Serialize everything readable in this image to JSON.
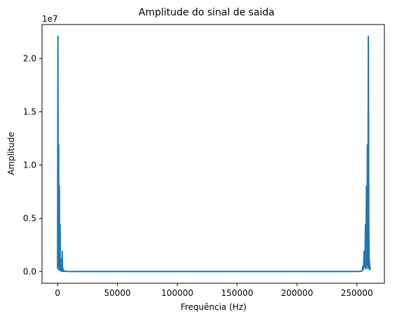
{
  "chart_data": {
    "type": "line",
    "title": "Amplitude do sinal de saida",
    "xlabel": "Frequência (Hz)",
    "ylabel": "Amplitude",
    "y_offset_label": "1e7",
    "xlim": [
      -13000,
      273000
    ],
    "ylim": [
      -1100000,
      23200000
    ],
    "x_ticks": [
      0,
      50000,
      100000,
      150000,
      200000,
      250000
    ],
    "x_tick_labels": [
      "0",
      "50000",
      "100000",
      "150000",
      "200000",
      "250000"
    ],
    "y_ticks": [
      0,
      5000000,
      10000000,
      15000000,
      20000000
    ],
    "y_tick_labels": [
      "0.0",
      "0.5",
      "1.0",
      "1.5",
      "2.0"
    ],
    "grid": false,
    "line_color": "#1f77b4",
    "series": [
      {
        "values_x": [
          0,
          300,
          500,
          700,
          900,
          1100,
          1300,
          1500,
          1700,
          1900,
          2100,
          2300,
          2500,
          2700,
          2900,
          3100,
          3300,
          3500,
          3700,
          3900,
          4100,
          4300,
          4500,
          4700,
          4900,
          5100,
          5300,
          5500,
          6500,
          8000,
          10000,
          50000,
          100000,
          130000,
          160000,
          210000,
          250000,
          252000,
          254500,
          255000,
          255600,
          256000,
          256400,
          256800,
          257200,
          257600,
          258000,
          258400,
          258800,
          259200,
          259600,
          260000,
          260300,
          260500,
          260700,
          260900,
          261000
        ],
        "values_y": [
          300000,
          22100000,
          800000,
          200000,
          11900000,
          600000,
          200000,
          8000000,
          400000,
          100000,
          4400000,
          250000,
          80000,
          1200000,
          100000,
          40000,
          700000,
          80000,
          30000,
          1900000,
          60000,
          20000,
          300000,
          50000,
          20000,
          120000,
          30000,
          10000,
          40000,
          10000,
          5000,
          0,
          0,
          0,
          0,
          0,
          5000,
          10000,
          50000,
          500000,
          200000,
          1900000,
          400000,
          1200000,
          4400000,
          250000,
          8000000,
          600000,
          11900000,
          300000,
          22100000,
          4400000,
          300000,
          1000000,
          200000,
          500000,
          100000
        ]
      }
    ]
  }
}
